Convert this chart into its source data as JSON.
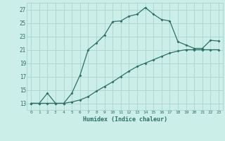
{
  "title": "",
  "xlabel": "Humidex (Indice chaleur)",
  "ylabel": "",
  "background_color": "#cceee8",
  "grid_color": "#aad4cc",
  "line_color": "#2d7068",
  "ylim": [
    12,
    28
  ],
  "xlim": [
    -0.5,
    23.5
  ],
  "yticks": [
    13,
    15,
    17,
    19,
    21,
    23,
    25,
    27
  ],
  "xticks": [
    0,
    1,
    2,
    3,
    4,
    5,
    6,
    7,
    8,
    9,
    10,
    11,
    12,
    13,
    14,
    15,
    16,
    17,
    18,
    19,
    20,
    21,
    22,
    23
  ],
  "xtick_labels": [
    "0",
    "1",
    "2",
    "3",
    "4",
    "5",
    "6",
    "7",
    "8",
    "9",
    "10",
    "11",
    "12",
    "13",
    "14",
    "15",
    "16",
    "17",
    "18",
    "19",
    "20",
    "21",
    "22",
    "23"
  ],
  "series1_x": [
    0,
    1,
    2,
    3,
    4,
    5,
    6,
    7,
    8,
    9,
    10,
    11,
    12,
    13,
    14,
    15,
    16,
    17,
    18,
    19,
    20,
    21,
    22,
    23
  ],
  "series1_y": [
    13.0,
    13.0,
    14.5,
    13.0,
    13.0,
    14.5,
    17.2,
    21.0,
    22.0,
    23.2,
    25.2,
    25.3,
    26.0,
    26.3,
    27.3,
    26.3,
    25.5,
    25.3,
    22.2,
    21.7,
    21.2,
    21.2,
    22.4,
    22.3
  ],
  "series2_x": [
    0,
    1,
    2,
    3,
    4,
    5,
    6,
    7,
    8,
    9,
    10,
    11,
    12,
    13,
    14,
    15,
    16,
    17,
    18,
    19,
    20,
    21,
    22,
    23
  ],
  "series2_y": [
    13.0,
    13.0,
    13.0,
    13.0,
    13.0,
    13.2,
    13.5,
    14.0,
    14.8,
    15.5,
    16.2,
    17.0,
    17.8,
    18.5,
    19.0,
    19.5,
    20.0,
    20.5,
    20.8,
    21.0,
    21.0,
    21.0,
    21.0,
    21.0
  ]
}
